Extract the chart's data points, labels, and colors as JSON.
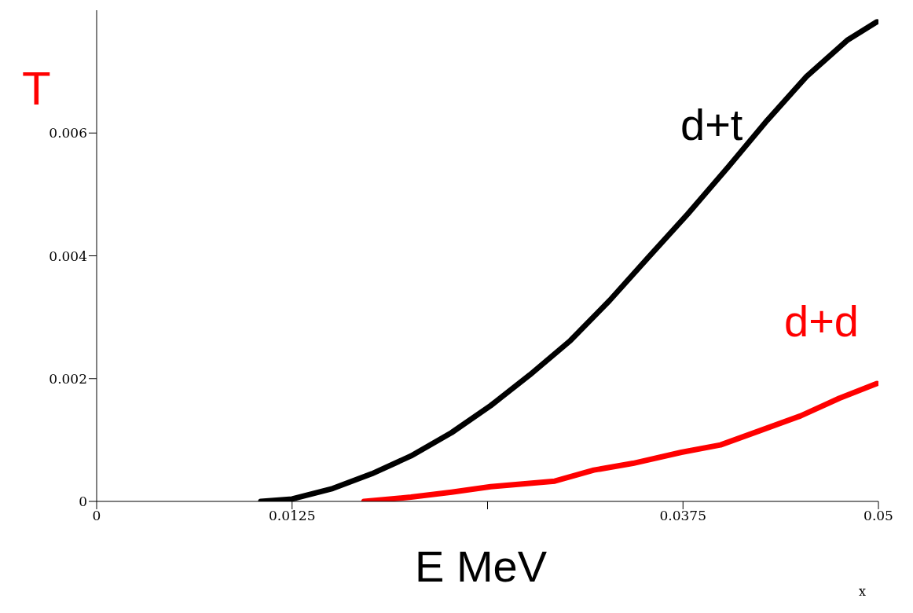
{
  "chart_data": {
    "type": "line",
    "xlabel": "E MeV",
    "ylabel": "T",
    "xlim": [
      0,
      0.05
    ],
    "xticks": [
      0,
      0.0125,
      {
        "value": 0.025,
        "label": null
      },
      0.0375,
      {
        "value": 0.05,
        "label": "0.05"
      }
    ],
    "ylim": [
      0,
      0.008
    ],
    "yticks": [
      0,
      0.002,
      0.004,
      0.006
    ],
    "grid": false,
    "legend": false,
    "marker": "none",
    "line_style": "solid",
    "annotations": [
      "x"
    ],
    "series": [
      {
        "name": "d+t",
        "color": "#000000",
        "x": [
          0.0105,
          0.0125,
          0.0151,
          0.0176,
          0.0201,
          0.0227,
          0.0252,
          0.0277,
          0.0303,
          0.0328,
          0.0353,
          0.0378,
          0.0404,
          0.0429,
          0.0454,
          0.048,
          0.0499
        ],
        "values": [
          0,
          4e-05,
          0.00021,
          0.00045,
          0.00074,
          0.00112,
          0.00156,
          0.00206,
          0.00262,
          0.00327,
          0.00398,
          0.00468,
          0.00545,
          0.00621,
          0.00692,
          0.00751,
          0.00781
        ]
      },
      {
        "name": "d+d",
        "color": "#ff0000",
        "x": [
          0.0171,
          0.0201,
          0.0227,
          0.0252,
          0.0293,
          0.0318,
          0.0343,
          0.0374,
          0.0399,
          0.0424,
          0.045,
          0.0475,
          0.0499
        ],
        "values": [
          0,
          7e-05,
          0.00015,
          0.00024,
          0.00033,
          0.00051,
          0.00062,
          0.0008,
          0.00092,
          0.00115,
          0.00139,
          0.00168,
          0.00192
        ]
      }
    ]
  }
}
